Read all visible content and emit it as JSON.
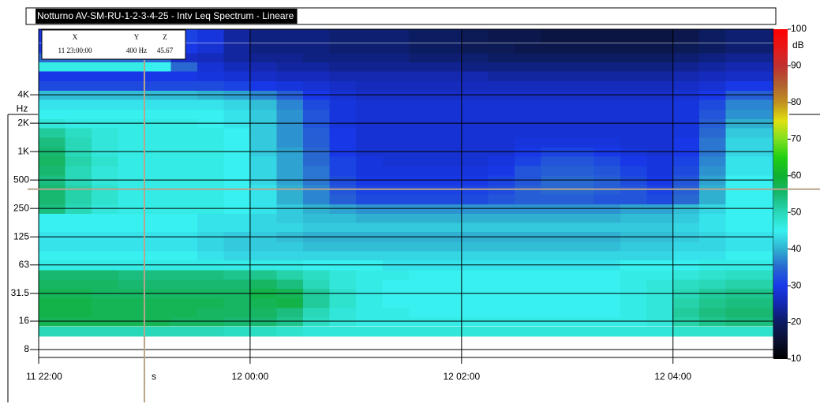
{
  "chart_data": {
    "type": "heatmap",
    "title": "Notturno AV-SM-RU-1-2-3-4-25 - Intv Leq Spectrum - Lineare",
    "x": [
      0,
      15,
      30,
      45,
      60,
      75,
      90,
      105,
      120,
      135,
      150,
      165,
      180,
      195,
      210,
      225,
      240,
      255,
      270,
      285,
      300,
      315,
      330,
      345,
      360,
      375,
      390,
      405
    ],
    "xlim": [
      0,
      417
    ],
    "xticks": [
      {
        "value": 0,
        "label": "11 22:00"
      },
      {
        "value": 120,
        "label": "12 00:00"
      },
      {
        "value": 240,
        "label": "12 02:00"
      },
      {
        "value": 360,
        "label": "12 04:00"
      }
    ],
    "y": [
      12.5,
      16,
      20,
      25,
      31.5,
      40,
      50,
      63,
      80,
      100,
      125,
      160,
      200,
      250,
      315,
      400,
      500,
      630,
      800,
      1000,
      1250,
      1600,
      2000,
      2500,
      3150,
      4000,
      5000,
      6300,
      8000,
      10000,
      12500,
      16000,
      20000
    ],
    "yscale": "log",
    "ylim": [
      6.6,
      19800
    ],
    "yticks": [
      8,
      16,
      31.5,
      63,
      125,
      250,
      500,
      {
        "value": 1000,
        "label": "1K"
      },
      {
        "value": 2000,
        "label": "2K"
      },
      {
        "value": 4000,
        "label": "4K"
      }
    ],
    "ylabel": "Hz",
    "grid": true,
    "z": [
      [
        50,
        50,
        50,
        50,
        50,
        50,
        50,
        49,
        49,
        48,
        47,
        47,
        47,
        47,
        47,
        47,
        47,
        47,
        47,
        47,
        47,
        47,
        47,
        47,
        48,
        48,
        48,
        48
      ],
      [
        57,
        57,
        57,
        57,
        57,
        56,
        56,
        55,
        55,
        53,
        49,
        47,
        46,
        46,
        46,
        46,
        46,
        46,
        46,
        46,
        46,
        46,
        46,
        47,
        51,
        53,
        54,
        54
      ],
      [
        58,
        58,
        57,
        57,
        57,
        57,
        56,
        56,
        56,
        54,
        50,
        47,
        46,
        46,
        45,
        45,
        45,
        45,
        45,
        45,
        45,
        45,
        46,
        47,
        52,
        54,
        55,
        55
      ],
      [
        58,
        58,
        57,
        57,
        57,
        57,
        57,
        56,
        57,
        58,
        52,
        48,
        46,
        45,
        45,
        45,
        45,
        45,
        45,
        45,
        45,
        45,
        46,
        47,
        51,
        53,
        54,
        54
      ],
      [
        57,
        57,
        56,
        56,
        56,
        56,
        56,
        56,
        58,
        57,
        52,
        48,
        46,
        45,
        45,
        45,
        45,
        45,
        45,
        45,
        45,
        45,
        46,
        47,
        50,
        52,
        53,
        53
      ],
      [
        56,
        56,
        56,
        55,
        55,
        55,
        55,
        55,
        56,
        54,
        50,
        47,
        46,
        45,
        45,
        45,
        45,
        45,
        45,
        45,
        45,
        45,
        46,
        47,
        49,
        50,
        51,
        51
      ],
      [
        55,
        55,
        55,
        54,
        54,
        54,
        54,
        53,
        53,
        51,
        49,
        47,
        46,
        46,
        45,
        45,
        45,
        45,
        45,
        45,
        45,
        45,
        46,
        46,
        47,
        48,
        49,
        49
      ],
      [
        46,
        46,
        46,
        46,
        46,
        46,
        46,
        46,
        46,
        46,
        45,
        45,
        45,
        44,
        44,
        44,
        44,
        44,
        44,
        44,
        44,
        44,
        45,
        45,
        45,
        46,
        46,
        46
      ],
      [
        45,
        45,
        45,
        45,
        45,
        45,
        44,
        43,
        43,
        43,
        43,
        43,
        43,
        43,
        43,
        43,
        43,
        43,
        43,
        43,
        43,
        43,
        43,
        43,
        44,
        44,
        45,
        45
      ],
      [
        44,
        44,
        44,
        44,
        44,
        44,
        43,
        42,
        42,
        42,
        41,
        41,
        41,
        41,
        41,
        41,
        41,
        41,
        41,
        41,
        41,
        41,
        42,
        42,
        43,
        43,
        44,
        44
      ],
      [
        44,
        44,
        44,
        44,
        44,
        44,
        43,
        42,
        42,
        41,
        40,
        40,
        40,
        40,
        40,
        40,
        40,
        40,
        40,
        40,
        40,
        40,
        41,
        41,
        42,
        43,
        44,
        44
      ],
      [
        45,
        45,
        45,
        45,
        45,
        45,
        44,
        44,
        43,
        43,
        42,
        42,
        42,
        42,
        42,
        42,
        42,
        42,
        42,
        42,
        42,
        42,
        42,
        42,
        43,
        44,
        45,
        45
      ],
      [
        45,
        45,
        45,
        45,
        45,
        45,
        44,
        44,
        43,
        42,
        41,
        41,
        40,
        40,
        40,
        40,
        40,
        40,
        40,
        40,
        40,
        40,
        41,
        41,
        42,
        44,
        45,
        45
      ],
      [
        54,
        50,
        47,
        46,
        46,
        46,
        46,
        45,
        44,
        42,
        40,
        39,
        38,
        38,
        38,
        38,
        38,
        38,
        38,
        38,
        38,
        38,
        39,
        39,
        41,
        43,
        45,
        45
      ],
      [
        55,
        51,
        48,
        46,
        46,
        46,
        46,
        45,
        44,
        40,
        37,
        34,
        32,
        32,
        32,
        32,
        32,
        33,
        34,
        34,
        34,
        33,
        33,
        32,
        35,
        40,
        45,
        45
      ],
      [
        55,
        51,
        48,
        46,
        46,
        46,
        46,
        45,
        44,
        40,
        37,
        33,
        31,
        31,
        31,
        31,
        31,
        32,
        34,
        35,
        35,
        34,
        33,
        31,
        34,
        40,
        45,
        45
      ],
      [
        54,
        50,
        47,
        46,
        46,
        46,
        46,
        45,
        43,
        39,
        36,
        32,
        30,
        30,
        30,
        30,
        30,
        31,
        33,
        35,
        35,
        34,
        32,
        30,
        33,
        39,
        45,
        45
      ],
      [
        55,
        50,
        47,
        46,
        46,
        46,
        46,
        45,
        43,
        39,
        36,
        31,
        29,
        29,
        29,
        29,
        29,
        30,
        33,
        34,
        34,
        33,
        31,
        29,
        32,
        38,
        44,
        44
      ],
      [
        56,
        51,
        48,
        46,
        46,
        46,
        46,
        45,
        43,
        39,
        35,
        31,
        29,
        28,
        28,
        28,
        28,
        29,
        31,
        33,
        33,
        32,
        30,
        29,
        31,
        37,
        44,
        44
      ],
      [
        55,
        50,
        47,
        46,
        46,
        46,
        46,
        45,
        42,
        39,
        35,
        30,
        28,
        28,
        28,
        28,
        28,
        28,
        30,
        31,
        31,
        30,
        29,
        28,
        30,
        36,
        43,
        43
      ],
      [
        54,
        50,
        47,
        46,
        46,
        46,
        46,
        45,
        42,
        38,
        34,
        30,
        28,
        28,
        28,
        28,
        28,
        28,
        29,
        29,
        29,
        29,
        28,
        28,
        30,
        36,
        43,
        43
      ],
      [
        52,
        49,
        47,
        46,
        46,
        46,
        46,
        45,
        42,
        38,
        34,
        30,
        28,
        28,
        28,
        28,
        28,
        28,
        28,
        28,
        28,
        28,
        28,
        28,
        29,
        35,
        42,
        42
      ],
      [
        47,
        46,
        46,
        46,
        46,
        46,
        45,
        44,
        42,
        38,
        33,
        29,
        28,
        28,
        28,
        28,
        28,
        28,
        28,
        28,
        28,
        28,
        28,
        28,
        29,
        34,
        40,
        40
      ],
      [
        45,
        45,
        45,
        45,
        45,
        45,
        45,
        44,
        42,
        38,
        33,
        29,
        28,
        28,
        28,
        28,
        28,
        28,
        28,
        28,
        28,
        28,
        28,
        28,
        29,
        33,
        38,
        38
      ],
      [
        44,
        44,
        44,
        44,
        44,
        44,
        44,
        43,
        41,
        37,
        32,
        29,
        28,
        28,
        28,
        28,
        28,
        28,
        28,
        28,
        28,
        28,
        28,
        28,
        29,
        32,
        37,
        37
      ],
      [
        41,
        41,
        41,
        41,
        41,
        41,
        40,
        39,
        37,
        34,
        30,
        28,
        27,
        27,
        27,
        27,
        27,
        27,
        27,
        27,
        27,
        27,
        27,
        27,
        28,
        30,
        34,
        34
      ],
      [
        32,
        32,
        32,
        32,
        32,
        32,
        32,
        31,
        30,
        29,
        28,
        27,
        26,
        26,
        26,
        26,
        26,
        26,
        26,
        26,
        26,
        26,
        26,
        26,
        27,
        28,
        30,
        30
      ],
      [
        30,
        30,
        30,
        30,
        30,
        30,
        29,
        28,
        27,
        26,
        26,
        25,
        25,
        25,
        25,
        25,
        25,
        24,
        24,
        24,
        24,
        24,
        24,
        24,
        25,
        26,
        27,
        27
      ],
      [
        46,
        46,
        46,
        46,
        45,
        35,
        28,
        26,
        25,
        24,
        24,
        23,
        23,
        23,
        23,
        23,
        22,
        22,
        22,
        22,
        22,
        22,
        22,
        22,
        23,
        24,
        25,
        25
      ],
      [
        35,
        35,
        35,
        35,
        35,
        27,
        26,
        24,
        23,
        23,
        22,
        22,
        22,
        22,
        21,
        21,
        21,
        20,
        20,
        20,
        20,
        20,
        20,
        20,
        21,
        22,
        23,
        23
      ],
      [
        30,
        30,
        30,
        30,
        28,
        30,
        28,
        24,
        22,
        22,
        22,
        21,
        21,
        21,
        20,
        20,
        19,
        19,
        18,
        18,
        18,
        18,
        18,
        18,
        19,
        20,
        21,
        21
      ],
      [
        30,
        30,
        30,
        30,
        28,
        31,
        29,
        24,
        22,
        22,
        22,
        21,
        21,
        21,
        20,
        20,
        19,
        18,
        18,
        17,
        17,
        17,
        17,
        17,
        18,
        20,
        21,
        21
      ],
      [
        30,
        30,
        30,
        30,
        28,
        31,
        29,
        24,
        22,
        22,
        22,
        21,
        21,
        21,
        20,
        20,
        19,
        18,
        18,
        17,
        17,
        17,
        17,
        17,
        18,
        20,
        21,
        21
      ]
    ],
    "colorbar": {
      "label": "dB",
      "lim": [
        10,
        100
      ],
      "ticks": [
        10,
        20,
        30,
        40,
        50,
        60,
        70,
        80,
        90,
        100
      ],
      "scale": [
        [
          10,
          "#000000"
        ],
        [
          15,
          "#0a1030"
        ],
        [
          20,
          "#0c1c60"
        ],
        [
          25,
          "#1428b0"
        ],
        [
          30,
          "#1838e8"
        ],
        [
          35,
          "#2868d0"
        ],
        [
          40,
          "#30b0d0"
        ],
        [
          45,
          "#38f0f0"
        ],
        [
          50,
          "#28d8b8"
        ],
        [
          55,
          "#18b870"
        ],
        [
          60,
          "#10b030"
        ],
        [
          65,
          "#20d010"
        ],
        [
          70,
          "#80e020"
        ],
        [
          75,
          "#e0e010"
        ],
        [
          80,
          "#c09020"
        ],
        [
          85,
          "#b06030"
        ],
        [
          90,
          "#c03030"
        ],
        [
          95,
          "#e81818"
        ],
        [
          100,
          "#ff0000"
        ]
      ]
    },
    "cursor": {
      "x": 60,
      "y": 400,
      "x_label": "s",
      "readout": {
        "headers": [
          "X",
          "Y",
          "Z"
        ],
        "values": [
          "11 23:00:00",
          "400 Hz",
          "45.67"
        ]
      }
    }
  }
}
